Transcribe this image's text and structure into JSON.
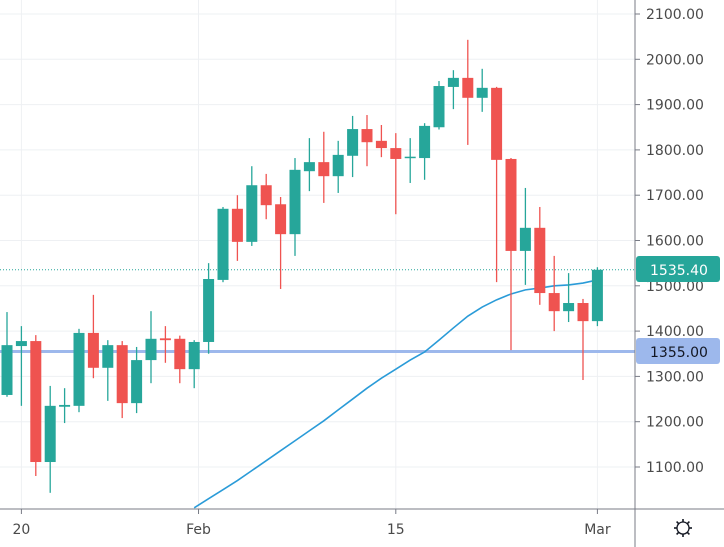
{
  "chart_data": {
    "type": "candlestick",
    "title": "",
    "y_ticks": [
      "2100.00",
      "2000.00",
      "1900.00",
      "1800.00",
      "1700.00",
      "1600.00",
      "1500.00",
      "1400.00",
      "1300.00",
      "1200.00",
      "1100.00"
    ],
    "y_tick_values": [
      2100,
      2000,
      1900,
      1800,
      1700,
      1600,
      1500,
      1400,
      1300,
      1200,
      1100
    ],
    "x_labels": [
      {
        "label": "20",
        "index": 1
      },
      {
        "label": "Feb",
        "index": 13.3
      },
      {
        "label": "15",
        "index": 27
      },
      {
        "label": "Mar",
        "index": 41
      }
    ],
    "ylim": [
      1005,
      2120
    ],
    "grid": true,
    "colors": {
      "up": "#26a69a",
      "down": "#ef5350",
      "ma": "#2a9bd8",
      "hline": "#9db8ec",
      "grid": "#eef0f3",
      "axis": "#787b86"
    },
    "candles": [
      [
        1259,
        1442,
        1255,
        1369
      ],
      [
        1367,
        1411,
        1235,
        1378
      ],
      [
        1378,
        1391,
        1080,
        1111
      ],
      [
        1111,
        1279,
        1043,
        1235
      ],
      [
        1233,
        1274,
        1197,
        1237
      ],
      [
        1235,
        1405,
        1221,
        1396
      ],
      [
        1396,
        1480,
        1296,
        1319
      ],
      [
        1319,
        1380,
        1246,
        1369
      ],
      [
        1369,
        1378,
        1208,
        1241
      ],
      [
        1241,
        1365,
        1219,
        1336
      ],
      [
        1336,
        1444,
        1285,
        1383
      ],
      [
        1384,
        1411,
        1330,
        1380
      ],
      [
        1383,
        1390,
        1285,
        1316
      ],
      [
        1316,
        1380,
        1274,
        1376
      ],
      [
        1376,
        1550,
        1350,
        1515
      ],
      [
        1513,
        1674,
        1508,
        1670
      ],
      [
        1670,
        1700,
        1555,
        1597
      ],
      [
        1597,
        1764,
        1588,
        1722
      ],
      [
        1722,
        1747,
        1647,
        1678
      ],
      [
        1680,
        1696,
        1493,
        1614
      ],
      [
        1614,
        1782,
        1566,
        1756
      ],
      [
        1753,
        1826,
        1709,
        1773
      ],
      [
        1773,
        1840,
        1683,
        1742
      ],
      [
        1742,
        1820,
        1705,
        1789
      ],
      [
        1787,
        1875,
        1740,
        1846
      ],
      [
        1846,
        1877,
        1764,
        1817
      ],
      [
        1820,
        1855,
        1784,
        1804
      ],
      [
        1804,
        1837,
        1658,
        1780
      ],
      [
        1782,
        1826,
        1727,
        1785
      ],
      [
        1782,
        1859,
        1734,
        1853
      ],
      [
        1850,
        1952,
        1845,
        1941
      ],
      [
        1939,
        1976,
        1890,
        1959
      ],
      [
        1959,
        2043,
        1811,
        1915
      ],
      [
        1915,
        1979,
        1884,
        1937
      ],
      [
        1937,
        1939,
        1508,
        1778
      ],
      [
        1780,
        1782,
        1358,
        1577
      ],
      [
        1577,
        1716,
        1502,
        1628
      ],
      [
        1628,
        1674,
        1458,
        1484
      ],
      [
        1484,
        1566,
        1400,
        1444
      ],
      [
        1444,
        1528,
        1420,
        1462
      ],
      [
        1462,
        1471,
        1292,
        1422
      ],
      [
        1422,
        1541,
        1411,
        1535.4
      ]
    ],
    "candle_format": "open, high, low, close",
    "moving_average": {
      "start_index": 13,
      "values": [
        1010,
        1030,
        1050,
        1070,
        1092,
        1114,
        1136,
        1158,
        1180,
        1202,
        1226,
        1250,
        1274,
        1296,
        1316,
        1336,
        1354,
        1380,
        1407,
        1433,
        1453,
        1469,
        1482,
        1491,
        1495,
        1500,
        1502,
        1506,
        1513
      ]
    },
    "last_price": 1535.4,
    "last_price_label": "1535.40",
    "horizontal_line": 1355.0,
    "horizontal_line_label": "1355.00"
  },
  "toolbar": {
    "settings_icon": "gear-icon"
  }
}
